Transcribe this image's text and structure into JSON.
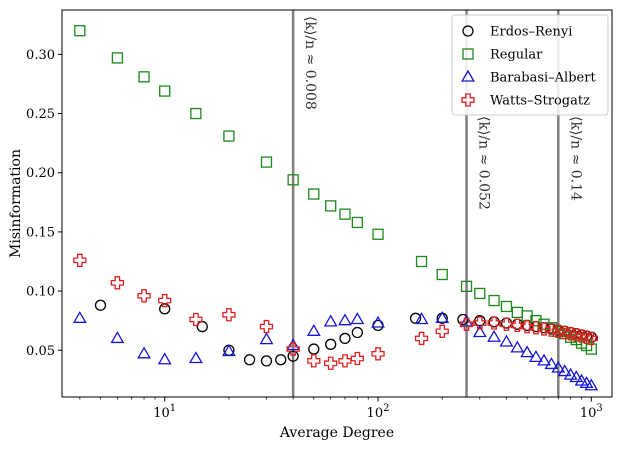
{
  "chart_data": {
    "type": "scatter",
    "xlabel": "Average Degree",
    "ylabel": "Misinformation",
    "xscale": "log",
    "xlim": [
      3.3,
      1250
    ],
    "ylim": [
      0.0105,
      0.3375
    ],
    "x_ticks": [
      {
        "value": 10,
        "base": "10",
        "exp": "1"
      },
      {
        "value": 100,
        "base": "10",
        "exp": "2"
      },
      {
        "value": 1000,
        "base": "10",
        "exp": "3"
      }
    ],
    "y_ticks": [
      0.05,
      0.1,
      0.15,
      0.2,
      0.25,
      0.3
    ],
    "y_tick_labels": [
      "0.05",
      "0.10",
      "0.15",
      "0.20",
      "0.25",
      "0.30"
    ],
    "vlines": [
      {
        "x": 40,
        "label": "⟨k⟩/n ≈ 0.008"
      },
      {
        "x": 260,
        "label": "⟨k⟩/n ≈ 0.052"
      },
      {
        "x": 700,
        "label": "⟨k⟩/n ≈ 0.14"
      }
    ],
    "legend_position": "top-right",
    "series": [
      {
        "name": "Erdos–Renyi",
        "marker": "circle",
        "color": "#000000",
        "points": [
          [
            5,
            0.088
          ],
          [
            10,
            0.085
          ],
          [
            15,
            0.07
          ],
          [
            20,
            0.05
          ],
          [
            25,
            0.042
          ],
          [
            30,
            0.041
          ],
          [
            35,
            0.042
          ],
          [
            40,
            0.045
          ],
          [
            50,
            0.051
          ],
          [
            60,
            0.055
          ],
          [
            70,
            0.06
          ],
          [
            80,
            0.065
          ],
          [
            100,
            0.071
          ],
          [
            150,
            0.077
          ],
          [
            200,
            0.077
          ],
          [
            250,
            0.076
          ],
          [
            300,
            0.075
          ],
          [
            350,
            0.074
          ],
          [
            400,
            0.073
          ],
          [
            450,
            0.072
          ],
          [
            500,
            0.071
          ],
          [
            550,
            0.07
          ],
          [
            600,
            0.069
          ],
          [
            650,
            0.068
          ],
          [
            700,
            0.067
          ],
          [
            750,
            0.066
          ],
          [
            800,
            0.065
          ],
          [
            850,
            0.064
          ],
          [
            900,
            0.063
          ],
          [
            950,
            0.062
          ],
          [
            1000,
            0.061
          ]
        ]
      },
      {
        "name": "Regular",
        "marker": "square",
        "color": "#1a8a1a",
        "points": [
          [
            4,
            0.32
          ],
          [
            6,
            0.297
          ],
          [
            8,
            0.281
          ],
          [
            10,
            0.269
          ],
          [
            14,
            0.25
          ],
          [
            20,
            0.231
          ],
          [
            30,
            0.209
          ],
          [
            40,
            0.194
          ],
          [
            50,
            0.182
          ],
          [
            60,
            0.172
          ],
          [
            70,
            0.165
          ],
          [
            80,
            0.158
          ],
          [
            100,
            0.148
          ],
          [
            160,
            0.125
          ],
          [
            200,
            0.114
          ],
          [
            260,
            0.104
          ],
          [
            300,
            0.098
          ],
          [
            350,
            0.092
          ],
          [
            400,
            0.087
          ],
          [
            450,
            0.082
          ],
          [
            500,
            0.079
          ],
          [
            550,
            0.075
          ],
          [
            600,
            0.072
          ],
          [
            650,
            0.069
          ],
          [
            700,
            0.066
          ],
          [
            750,
            0.064
          ],
          [
            800,
            0.061
          ],
          [
            850,
            0.059
          ],
          [
            900,
            0.056
          ],
          [
            950,
            0.054
          ],
          [
            1000,
            0.051
          ]
        ]
      },
      {
        "name": "Barabasi–Albert",
        "marker": "triangle",
        "color": "#1515d6",
        "points": [
          [
            4,
            0.077
          ],
          [
            6,
            0.06
          ],
          [
            8,
            0.047
          ],
          [
            10,
            0.042
          ],
          [
            14,
            0.043
          ],
          [
            20,
            0.049
          ],
          [
            30,
            0.059
          ],
          [
            40,
            0.054
          ],
          [
            50,
            0.066
          ],
          [
            60,
            0.074
          ],
          [
            70,
            0.075
          ],
          [
            80,
            0.076
          ],
          [
            100,
            0.073
          ],
          [
            160,
            0.076
          ],
          [
            200,
            0.077
          ],
          [
            260,
            0.074
          ],
          [
            300,
            0.065
          ],
          [
            350,
            0.061
          ],
          [
            400,
            0.057
          ],
          [
            450,
            0.052
          ],
          [
            500,
            0.048
          ],
          [
            550,
            0.044
          ],
          [
            600,
            0.041
          ],
          [
            650,
            0.038
          ],
          [
            700,
            0.035
          ],
          [
            750,
            0.032
          ],
          [
            800,
            0.029
          ],
          [
            850,
            0.027
          ],
          [
            900,
            0.024
          ],
          [
            950,
            0.022
          ],
          [
            1000,
            0.02
          ]
        ]
      },
      {
        "name": "Watts–Strogatz",
        "marker": "plus",
        "color": "#e02020",
        "points": [
          [
            4,
            0.126
          ],
          [
            6,
            0.107
          ],
          [
            8,
            0.096
          ],
          [
            10,
            0.092
          ],
          [
            14,
            0.076
          ],
          [
            20,
            0.08
          ],
          [
            30,
            0.07
          ],
          [
            40,
            0.051
          ],
          [
            50,
            0.041
          ],
          [
            60,
            0.039
          ],
          [
            70,
            0.041
          ],
          [
            80,
            0.043
          ],
          [
            100,
            0.047
          ],
          [
            160,
            0.06
          ],
          [
            200,
            0.066
          ],
          [
            260,
            0.072
          ],
          [
            300,
            0.073
          ],
          [
            350,
            0.073
          ],
          [
            400,
            0.072
          ],
          [
            450,
            0.071
          ],
          [
            500,
            0.07
          ],
          [
            550,
            0.069
          ],
          [
            600,
            0.068
          ],
          [
            650,
            0.067
          ],
          [
            700,
            0.066
          ],
          [
            750,
            0.065
          ],
          [
            800,
            0.064
          ],
          [
            850,
            0.063
          ],
          [
            900,
            0.062
          ],
          [
            950,
            0.061
          ],
          [
            1000,
            0.06
          ]
        ]
      }
    ]
  }
}
